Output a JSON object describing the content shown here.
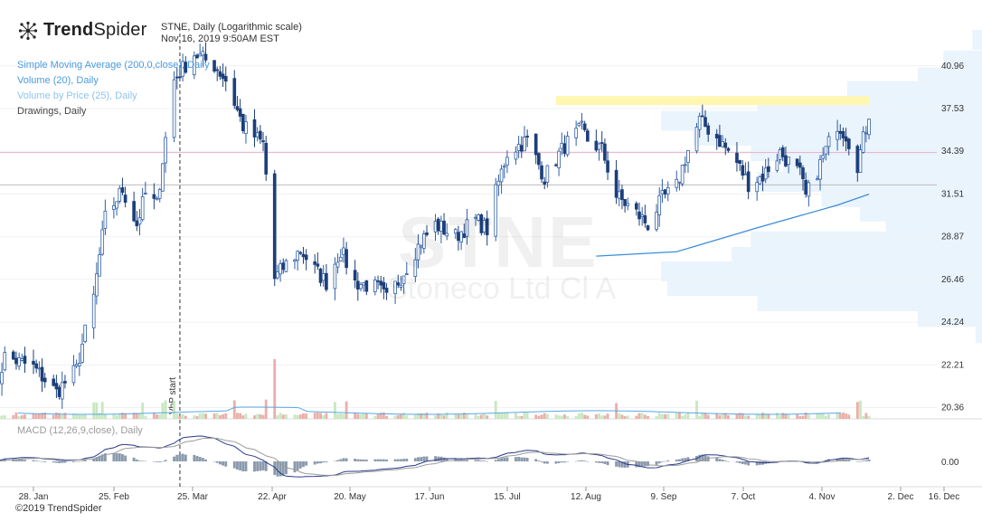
{
  "brand": {
    "name_bold": "Trend",
    "name_regular": "Spider",
    "icon": "spider-logo-icon"
  },
  "header": {
    "line1": "STNE, Daily (Logarithmic scale)",
    "line2": "Nov 16, 2019 9:50AM EST"
  },
  "legend": [
    {
      "label": "Simple Moving Average (200,0,close), Daily",
      "color": "#4a9be0"
    },
    {
      "label": "Volume (20), Daily",
      "color": "#4a9be0"
    },
    {
      "label": "Volume by Price (25), Daily",
      "color": "#8cc4ef"
    },
    {
      "label": "Drawings, Daily",
      "color": "#444444"
    }
  ],
  "watermark": {
    "symbol": "STNE",
    "name": "Stoneco Ltd Cl A"
  },
  "macd_label": "MACD (12,26,9,close), Daily",
  "copyright": "©2019 TrendSpider",
  "vbp_marker_label": "VbP start",
  "chart_data": {
    "type": "candlestick",
    "scale": "log",
    "ylim": [
      20.0,
      44.5
    ],
    "yticks": [
      20.36,
      22.21,
      24.24,
      26.46,
      28.87,
      31.51,
      34.39,
      37.53,
      40.96
    ],
    "xticks": [
      "28. Jan",
      "25. Feb",
      "25. Mar",
      "22. Apr",
      "20. May",
      "17. Jun",
      "15. Jul",
      "12. Aug",
      "9. Sep",
      "7. Oct",
      "4. Nov",
      "2. Dec",
      "16. Dec"
    ],
    "price_anchors": [
      [
        "2019-01-14",
        20.6
      ],
      [
        "2019-01-18",
        22.6
      ],
      [
        "2019-01-28",
        22.1
      ],
      [
        "2019-02-05",
        21.0
      ],
      [
        "2019-02-12",
        22.0
      ],
      [
        "2019-02-18",
        25.5
      ],
      [
        "2019-02-22",
        30.0
      ],
      [
        "2019-02-28",
        31.8
      ],
      [
        "2019-03-05",
        29.6
      ],
      [
        "2019-03-08",
        31.5
      ],
      [
        "2019-03-12",
        30.8
      ],
      [
        "2019-03-15",
        35.3
      ],
      [
        "2019-03-18",
        39.8
      ],
      [
        "2019-03-25",
        42.0
      ],
      [
        "2019-04-01",
        41.0
      ],
      [
        "2019-04-05",
        39.8
      ],
      [
        "2019-04-11",
        36.2
      ],
      [
        "2019-04-18",
        34.9
      ],
      [
        "2019-04-22",
        26.5
      ],
      [
        "2019-04-26",
        27.3
      ],
      [
        "2019-05-01",
        28.1
      ],
      [
        "2019-05-06",
        27.0
      ],
      [
        "2019-05-10",
        26.3
      ],
      [
        "2019-05-15",
        28.1
      ],
      [
        "2019-05-20",
        26.3
      ],
      [
        "2019-05-28",
        26.0
      ],
      [
        "2019-05-31",
        25.4
      ],
      [
        "2019-06-05",
        26.6
      ],
      [
        "2019-06-12",
        28.6
      ],
      [
        "2019-06-17",
        29.6
      ],
      [
        "2019-06-24",
        28.9
      ],
      [
        "2019-07-01",
        29.9
      ],
      [
        "2019-07-05",
        29.3
      ],
      [
        "2019-07-08",
        31.6
      ],
      [
        "2019-07-12",
        34.3
      ],
      [
        "2019-07-19",
        35.2
      ],
      [
        "2019-07-25",
        32.6
      ],
      [
        "2019-08-01",
        34.8
      ],
      [
        "2019-08-07",
        36.0
      ],
      [
        "2019-08-09",
        35.2
      ],
      [
        "2019-08-14",
        34.5
      ],
      [
        "2019-08-19",
        31.4
      ],
      [
        "2019-08-26",
        30.3
      ],
      [
        "2019-08-30",
        29.6
      ],
      [
        "2019-09-04",
        31.2
      ],
      [
        "2019-09-09",
        32.0
      ],
      [
        "2019-09-12",
        33.9
      ],
      [
        "2019-09-17",
        36.6
      ],
      [
        "2019-09-23",
        35.4
      ],
      [
        "2019-09-30",
        33.6
      ],
      [
        "2019-10-04",
        32.2
      ],
      [
        "2019-10-09",
        32.7
      ],
      [
        "2019-10-15",
        34.3
      ],
      [
        "2019-10-22",
        32.8
      ],
      [
        "2019-10-24",
        31.3
      ],
      [
        "2019-10-29",
        33.5
      ],
      [
        "2019-11-04",
        36.4
      ],
      [
        "2019-11-07",
        35.6
      ],
      [
        "2019-11-11",
        33.5
      ],
      [
        "2019-11-14",
        36.1
      ],
      [
        "2019-11-15",
        37.2
      ]
    ],
    "sma200": [
      [
        "2019-08-12",
        27.75
      ],
      [
        "2019-09-09",
        28.0
      ],
      [
        "2019-10-07",
        29.4
      ],
      [
        "2019-11-04",
        30.8
      ],
      [
        "2019-11-15",
        31.5
      ]
    ],
    "resistance_zone": {
      "from": "2019-07-29",
      "to": "2019-11-15",
      "low": 37.8,
      "high": 38.5,
      "color": "#fff6b0"
    },
    "horizontal_lines": [
      {
        "value": 34.3,
        "color": "#e6b0d0"
      },
      {
        "value": 32.1,
        "color": "#bbbbbb"
      }
    ],
    "vbp_start": "2019-03-20",
    "volume_by_price": [
      {
        "price": 43.2,
        "rel": 0.03
      },
      {
        "price": 41.4,
        "rel": 0.12
      },
      {
        "price": 40.0,
        "rel": 0.2
      },
      {
        "price": 38.9,
        "rel": 0.42
      },
      {
        "price": 37.7,
        "rel": 0.7
      },
      {
        "price": 36.6,
        "rel": 1.0
      },
      {
        "price": 35.5,
        "rel": 0.9
      },
      {
        "price": 34.4,
        "rel": 0.72
      },
      {
        "price": 33.3,
        "rel": 0.62
      },
      {
        "price": 32.3,
        "rel": 0.7
      },
      {
        "price": 31.3,
        "rel": 0.5
      },
      {
        "price": 30.4,
        "rel": 0.38
      },
      {
        "price": 29.5,
        "rel": 0.3
      },
      {
        "price": 28.6,
        "rel": 0.72
      },
      {
        "price": 27.7,
        "rel": 0.78
      },
      {
        "price": 26.9,
        "rel": 1.0
      },
      {
        "price": 26.1,
        "rel": 0.98
      },
      {
        "price": 25.3,
        "rel": 0.7
      },
      {
        "price": 24.5,
        "rel": 0.2
      },
      {
        "price": 23.7,
        "rel": 0.02
      }
    ]
  }
}
